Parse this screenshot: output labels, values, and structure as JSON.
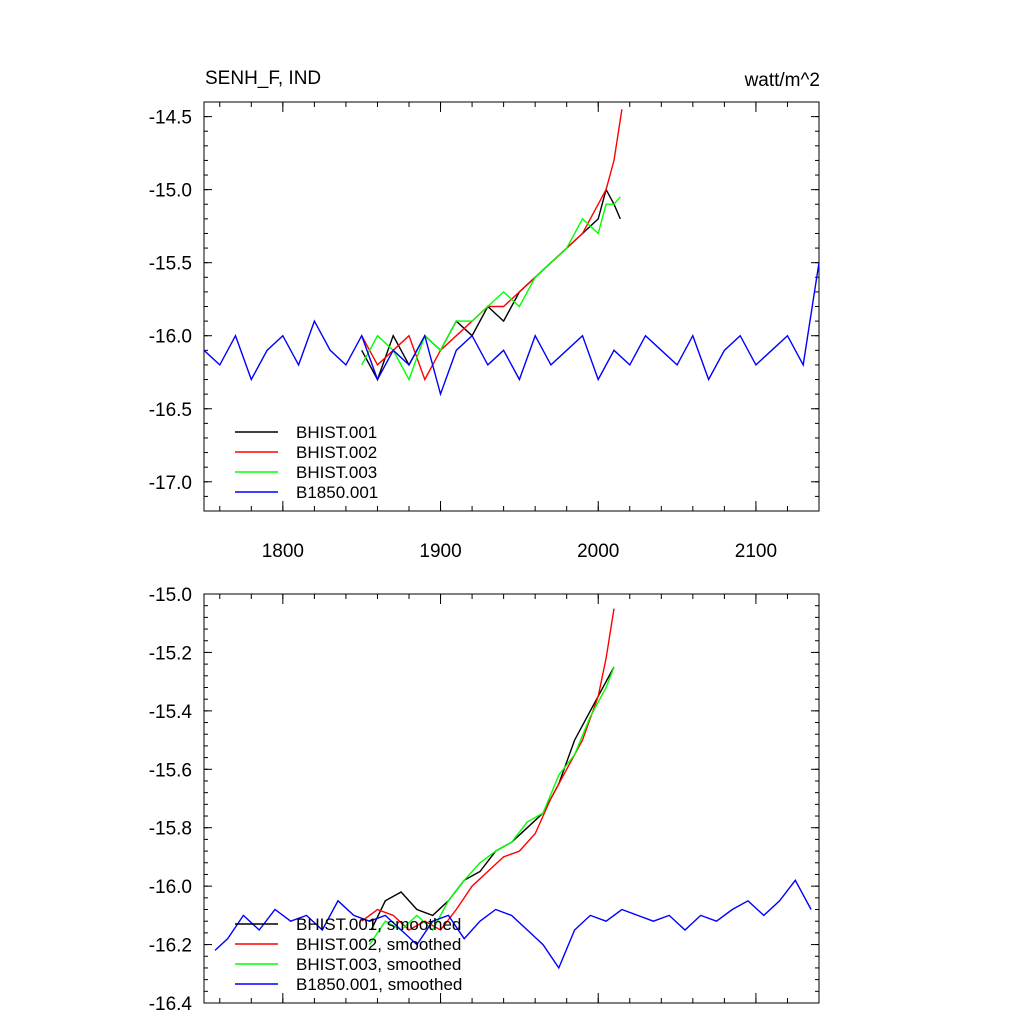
{
  "chart_data": [
    {
      "type": "line",
      "title": "SENH_F, IND",
      "units": "watt/m^2",
      "xlim": [
        1750,
        2140
      ],
      "ylim": [
        -17.2,
        -14.4
      ],
      "xticks": [
        1800,
        1900,
        2000,
        2100
      ],
      "yticks": [
        -14.5,
        -15.0,
        -15.5,
        -16.0,
        -16.5,
        -17.0
      ],
      "xtick_labels": [
        "1800",
        "1900",
        "2000",
        "2100"
      ],
      "ytick_labels": [
        "-14.5",
        "-15.0",
        "-15.5",
        "-16.0",
        "-16.5",
        "-17.0"
      ],
      "legend_position": "bottom-left",
      "series": [
        {
          "name": "BHIST.001",
          "color": "#000000",
          "x": [
            1850,
            1860,
            1870,
            1880,
            1890,
            1900,
            1910,
            1920,
            1930,
            1940,
            1950,
            1960,
            1970,
            1980,
            1990,
            2000,
            2005,
            2010,
            2014
          ],
          "y": [
            -16.1,
            -16.3,
            -16.0,
            -16.2,
            -16.0,
            -16.1,
            -15.9,
            -16.0,
            -15.8,
            -15.9,
            -15.7,
            -15.6,
            -15.5,
            -15.4,
            -15.3,
            -15.2,
            -15.0,
            -15.1,
            -15.2
          ]
        },
        {
          "name": "BHIST.002",
          "color": "#ff0000",
          "x": [
            1850,
            1860,
            1870,
            1880,
            1890,
            1900,
            1910,
            1920,
            1930,
            1940,
            1950,
            1960,
            1970,
            1980,
            1990,
            2000,
            2005,
            2010,
            2015
          ],
          "y": [
            -16.0,
            -16.2,
            -16.1,
            -16.0,
            -16.3,
            -16.1,
            -16.0,
            -15.9,
            -15.8,
            -15.8,
            -15.7,
            -15.6,
            -15.5,
            -15.4,
            -15.3,
            -15.1,
            -15.0,
            -14.8,
            -14.45
          ]
        },
        {
          "name": "BHIST.003",
          "color": "#00ff00",
          "x": [
            1850,
            1860,
            1870,
            1880,
            1890,
            1900,
            1910,
            1920,
            1930,
            1940,
            1950,
            1960,
            1970,
            1980,
            1990,
            2000,
            2005,
            2010,
            2014
          ],
          "y": [
            -16.2,
            -16.0,
            -16.1,
            -16.3,
            -16.0,
            -16.1,
            -15.9,
            -15.9,
            -15.8,
            -15.7,
            -15.8,
            -15.6,
            -15.5,
            -15.4,
            -15.2,
            -15.3,
            -15.1,
            -15.1,
            -15.05
          ]
        },
        {
          "name": "B1850.001",
          "color": "#0000ff",
          "x": [
            1750,
            1760,
            1770,
            1780,
            1790,
            1800,
            1810,
            1820,
            1830,
            1840,
            1850,
            1860,
            1870,
            1880,
            1890,
            1900,
            1910,
            1920,
            1930,
            1940,
            1950,
            1960,
            1970,
            1980,
            1990,
            2000,
            2010,
            2020,
            2030,
            2040,
            2050,
            2060,
            2070,
            2080,
            2090,
            2100,
            2110,
            2120,
            2130,
            2140
          ],
          "y": [
            -16.1,
            -16.2,
            -16.0,
            -16.3,
            -16.1,
            -16.0,
            -16.2,
            -15.9,
            -16.1,
            -16.2,
            -16.0,
            -16.3,
            -16.1,
            -16.2,
            -16.0,
            -16.4,
            -16.1,
            -16.0,
            -16.2,
            -16.1,
            -16.3,
            -16.0,
            -16.2,
            -16.1,
            -16.0,
            -16.3,
            -16.1,
            -16.2,
            -16.0,
            -16.1,
            -16.2,
            -16.0,
            -16.3,
            -16.1,
            -16.0,
            -16.2,
            -16.1,
            -16.0,
            -16.2,
            -15.5
          ]
        }
      ]
    },
    {
      "type": "line",
      "title": "",
      "xlim": [
        1750,
        2140
      ],
      "ylim": [
        -16.4,
        -15.0
      ],
      "xticks": [
        1800,
        1900,
        2000,
        2100
      ],
      "yticks": [
        -15.0,
        -15.2,
        -15.4,
        -15.6,
        -15.8,
        -16.0,
        -16.2,
        -16.4
      ],
      "ytick_labels": [
        "-15.0",
        "-15.2",
        "-15.4",
        "-15.6",
        "-15.8",
        "-16.0",
        "-16.2",
        "-16.4"
      ],
      "legend_position": "bottom-left",
      "series": [
        {
          "name": "BHIST.001, smoothed",
          "color": "#000000",
          "x": [
            1856,
            1865,
            1875,
            1885,
            1895,
            1905,
            1915,
            1925,
            1935,
            1945,
            1955,
            1965,
            1975,
            1985,
            1995,
            2005,
            2010
          ],
          "y": [
            -16.15,
            -16.05,
            -16.02,
            -16.08,
            -16.1,
            -16.05,
            -15.98,
            -15.95,
            -15.88,
            -15.85,
            -15.8,
            -15.75,
            -15.65,
            -15.5,
            -15.4,
            -15.3,
            -15.25
          ]
        },
        {
          "name": "BHIST.002, smoothed",
          "color": "#ff0000",
          "x": [
            1850,
            1860,
            1870,
            1880,
            1890,
            1900,
            1910,
            1920,
            1930,
            1940,
            1950,
            1960,
            1970,
            1980,
            1990,
            2000,
            2005,
            2010
          ],
          "y": [
            -16.12,
            -16.08,
            -16.1,
            -16.15,
            -16.12,
            -16.15,
            -16.08,
            -16.0,
            -15.95,
            -15.9,
            -15.88,
            -15.82,
            -15.7,
            -15.6,
            -15.5,
            -15.35,
            -15.22,
            -15.05
          ]
        },
        {
          "name": "BHIST.003, smoothed",
          "color": "#00ff00",
          "x": [
            1855,
            1865,
            1875,
            1885,
            1895,
            1905,
            1915,
            1925,
            1935,
            1945,
            1955,
            1965,
            1975,
            1985,
            1995,
            2005,
            2010
          ],
          "y": [
            -16.2,
            -16.12,
            -16.15,
            -16.1,
            -16.15,
            -16.05,
            -15.98,
            -15.92,
            -15.88,
            -15.85,
            -15.78,
            -15.75,
            -15.62,
            -15.55,
            -15.42,
            -15.32,
            -15.25
          ]
        },
        {
          "name": "B1850.001, smoothed",
          "color": "#0000ff",
          "x": [
            1757,
            1765,
            1775,
            1785,
            1795,
            1805,
            1815,
            1825,
            1835,
            1845,
            1855,
            1865,
            1875,
            1885,
            1895,
            1905,
            1915,
            1925,
            1935,
            1945,
            1955,
            1965,
            1975,
            1985,
            1995,
            2005,
            2015,
            2025,
            2035,
            2045,
            2055,
            2065,
            2075,
            2085,
            2095,
            2105,
            2115,
            2125,
            2135
          ],
          "y": [
            -16.22,
            -16.18,
            -16.1,
            -16.15,
            -16.08,
            -16.12,
            -16.1,
            -16.15,
            -16.05,
            -16.1,
            -16.12,
            -16.1,
            -16.15,
            -16.2,
            -16.12,
            -16.1,
            -16.18,
            -16.12,
            -16.08,
            -16.1,
            -16.15,
            -16.2,
            -16.28,
            -16.15,
            -16.1,
            -16.12,
            -16.08,
            -16.1,
            -16.12,
            -16.1,
            -16.15,
            -16.1,
            -16.12,
            -16.08,
            -16.05,
            -16.1,
            -16.05,
            -15.98,
            -16.08
          ]
        }
      ]
    }
  ]
}
